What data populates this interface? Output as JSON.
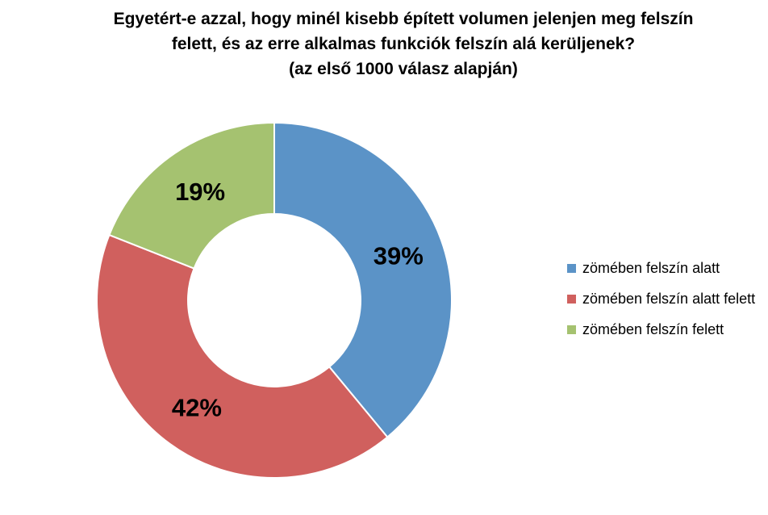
{
  "chart_data": {
    "type": "pie",
    "subtype": "donut",
    "title_lines": [
      "Egyetért-e azzal, hogy minél kisebb épített volumen jelenjen meg felszín",
      "felett, és az erre alkalmas funkciók felszín alá kerüljenek?",
      "(az első 1000 válasz alapján)"
    ],
    "slices": [
      {
        "label": "zömében felszín alatt",
        "value": 39,
        "display": "39%",
        "color": "#5b93c7"
      },
      {
        "label": "zömében felszín alatt felett",
        "value": 42,
        "display": "42%",
        "color": "#d0605e"
      },
      {
        "label": "zömében felszín felett",
        "value": 19,
        "display": "19%",
        "color": "#a5c270"
      }
    ],
    "legend_position": "right",
    "start": "top, clockwise"
  }
}
